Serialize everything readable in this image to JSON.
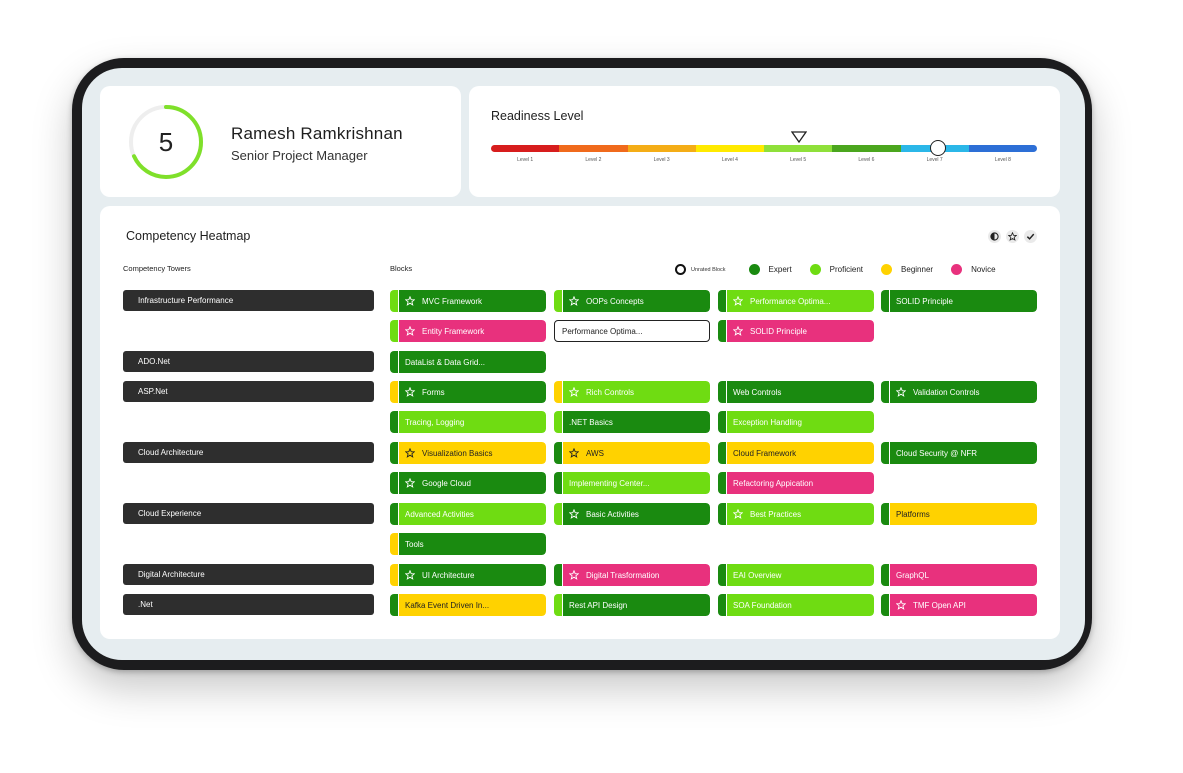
{
  "colors": {
    "expert": "#1a8a10",
    "proficient": "#6fdc12",
    "beginner": "#ffd200",
    "novice": "#e8317d",
    "tower": "#2e2e2e"
  },
  "profile": {
    "score": "5",
    "name": "Ramesh Ramkrishnan",
    "role": "Senior Project Manager"
  },
  "readiness": {
    "title": "Readiness Level",
    "levels": [
      {
        "label": "Level 1",
        "color": "#d71d1d"
      },
      {
        "label": "Level 2",
        "color": "#f06a1c"
      },
      {
        "label": "Level 3",
        "color": "#f4ad16"
      },
      {
        "label": "Level 4",
        "color": "#ffea00"
      },
      {
        "label": "Level 5",
        "color": "#8fe03a"
      },
      {
        "label": "Level 6",
        "color": "#4ba61e"
      },
      {
        "label": "Level 7",
        "color": "#2bb7e8"
      },
      {
        "label": "Level 8",
        "color": "#2d6fd6"
      }
    ]
  },
  "heatmap": {
    "title": "Competency Heatmap",
    "towers_header": "Competency Towers",
    "blocks_header": "Blocks",
    "legend": {
      "unrated": "Unrated Block",
      "expert": "Expert",
      "proficient": "Proficient",
      "beginner": "Beginner",
      "novice": "Novice"
    },
    "towers": [
      "Infrastructure Performance",
      "ADO.Net",
      "ASP.Net",
      "Cloud Architecture",
      "Cloud Experience",
      "Digital Architecture",
      ".Net"
    ],
    "blocks": [
      {
        "label": "MVC Framework",
        "bar": "proficient",
        "fill": "expert",
        "star": true
      },
      {
        "label": "OOPs Concepts",
        "bar": "proficient",
        "fill": "expert",
        "star": true
      },
      {
        "label": "Performance Optima...",
        "bar": "expert",
        "fill": "proficient",
        "star": true
      },
      {
        "label": "SOLID Principle",
        "bar": "expert",
        "fill": "expert",
        "star": false
      },
      {
        "label": "Entity Framework",
        "bar": "proficient",
        "fill": "novice",
        "star": true
      },
      {
        "label": "Performance Optima...",
        "bar": "unrated",
        "fill": "unrated",
        "star": false
      },
      {
        "label": "SOLID Principle",
        "bar": "expert",
        "fill": "novice",
        "star": true
      },
      {
        "label": "DataList & Data Grid...",
        "bar": "expert",
        "fill": "expert",
        "star": false
      },
      {
        "label": "Forms",
        "bar": "beginner",
        "fill": "expert",
        "star": true
      },
      {
        "label": "Rich Controls",
        "bar": "beginner",
        "fill": "proficient",
        "star": true
      },
      {
        "label": "Web Controls",
        "bar": "expert",
        "fill": "expert",
        "star": false
      },
      {
        "label": "Validation Controls",
        "bar": "expert",
        "fill": "expert",
        "star": true
      },
      {
        "label": "Tracing, Logging",
        "bar": "expert",
        "fill": "proficient",
        "star": false
      },
      {
        "label": ".NET Basics",
        "bar": "proficient",
        "fill": "expert",
        "star": false
      },
      {
        "label": "Exception Handling",
        "bar": "expert",
        "fill": "proficient",
        "star": false
      },
      {
        "label": "Visualization Basics",
        "bar": "expert",
        "fill": "beginner",
        "star": true
      },
      {
        "label": "AWS",
        "bar": "expert",
        "fill": "beginner",
        "star": true
      },
      {
        "label": "Cloud Framework",
        "bar": "expert",
        "fill": "beginner",
        "star": false
      },
      {
        "label": "Cloud Security @ NFR",
        "bar": "expert",
        "fill": "expert",
        "star": false
      },
      {
        "label": "Google Cloud",
        "bar": "expert",
        "fill": "expert",
        "star": true
      },
      {
        "label": "Implementing Center...",
        "bar": "expert",
        "fill": "proficient",
        "star": false
      },
      {
        "label": "Refactoring Appication",
        "bar": "expert",
        "fill": "novice",
        "star": false
      },
      {
        "label": "Advanced Activities",
        "bar": "expert",
        "fill": "proficient",
        "star": false
      },
      {
        "label": "Basic Activities",
        "bar": "proficient",
        "fill": "expert",
        "star": true
      },
      {
        "label": "Best Practices",
        "bar": "expert",
        "fill": "proficient",
        "star": true
      },
      {
        "label": "Platforms",
        "bar": "expert",
        "fill": "beginner",
        "star": false
      },
      {
        "label": "Tools",
        "bar": "beginner",
        "fill": "expert",
        "star": false
      },
      {
        "label": "UI Architecture",
        "bar": "beginner",
        "fill": "expert",
        "star": true
      },
      {
        "label": "Digital Trasformation",
        "bar": "expert",
        "fill": "novice",
        "star": true
      },
      {
        "label": "EAI Overview",
        "bar": "expert",
        "fill": "proficient",
        "star": false
      },
      {
        "label": "GraphQL",
        "bar": "expert",
        "fill": "novice",
        "star": false
      },
      {
        "label": "Kafka Event Driven In...",
        "bar": "expert",
        "fill": "beginner",
        "star": false
      },
      {
        "label": "Rest API Design",
        "bar": "proficient",
        "fill": "expert",
        "star": false
      },
      {
        "label": "SOA Foundation",
        "bar": "expert",
        "fill": "proficient",
        "star": false
      },
      {
        "label": "TMF Open API",
        "bar": "expert",
        "fill": "novice",
        "star": true
      }
    ]
  }
}
